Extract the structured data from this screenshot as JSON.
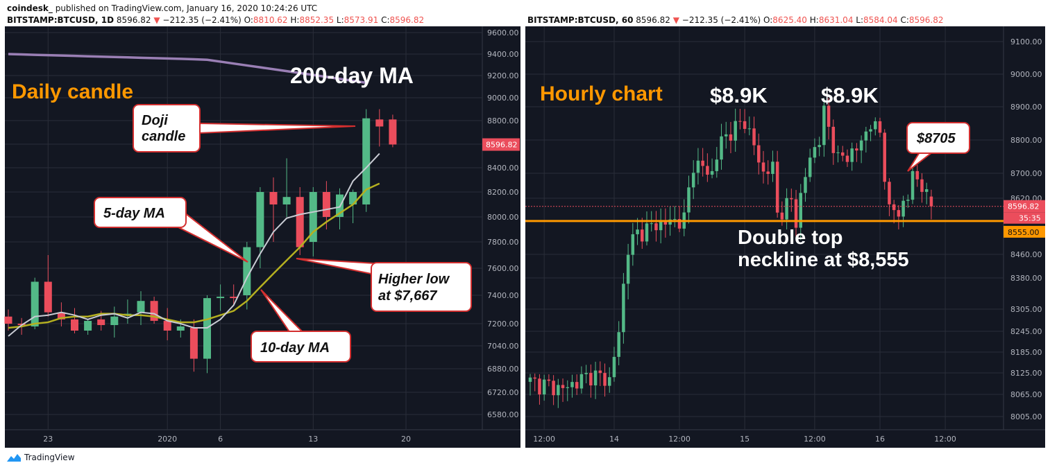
{
  "header": {
    "author": "coindesk_",
    "published": "published on TradingView.com, January 16, 2020 10:24:26 UTC"
  },
  "footer": {
    "brand": "TradingView"
  },
  "colors": {
    "bg": "#131722",
    "grid": "#2a2e39",
    "up": "#53b987",
    "down": "#eb4d5c",
    "ma5": "#c9ccd4",
    "ma10": "#b5b020",
    "ma200": "#9a7fb5",
    "neckline": "#ff9800",
    "orange_text": "#ff9800"
  },
  "chart_data": [
    {
      "type": "candlestick",
      "symbol_line": "BITSTAMP:BTCUSD, 1D",
      "last": "8596.82",
      "change": "−212.35 (−2.41%)",
      "ohlc": {
        "o_label": "O:",
        "o": "8810.62",
        "h_label": "H:",
        "h": "8852.35",
        "l_label": "L:",
        "l": "8573.91",
        "c_label": "C:",
        "c": "8596.82"
      },
      "price_label": "8596.82",
      "y_ticks": [
        "9600.00",
        "9400.00",
        "9200.00",
        "9000.00",
        "8800.00",
        "8600.00",
        "8400.00",
        "8200.00",
        "8000.00",
        "7800.00",
        "7600.00",
        "7400.00",
        "7200.00",
        "7040.00",
        "6880.00",
        "6720.00",
        "6580.00"
      ],
      "y_tick_values": [
        9600,
        9400,
        9200,
        9000,
        8800,
        8600,
        8400,
        8200,
        8000,
        7800,
        7600,
        7400,
        7200,
        7040,
        6880,
        6720,
        6580
      ],
      "x_ticks": [
        "23",
        "2020",
        "6",
        "13",
        "20"
      ],
      "x_tick_index": [
        3,
        12,
        16,
        23,
        30
      ],
      "candles": [
        [
          7250,
          7300,
          7150,
          7200
        ],
        [
          7200,
          7240,
          7120,
          7190
        ],
        [
          7180,
          7530,
          7160,
          7500
        ],
        [
          7500,
          7700,
          7250,
          7280
        ],
        [
          7280,
          7350,
          7180,
          7230
        ],
        [
          7230,
          7310,
          7130,
          7150
        ],
        [
          7150,
          7230,
          7120,
          7220
        ],
        [
          7230,
          7290,
          7150,
          7190
        ],
        [
          7190,
          7320,
          7100,
          7250
        ],
        [
          7260,
          7370,
          7200,
          7270
        ],
        [
          7280,
          7430,
          7190,
          7360
        ],
        [
          7360,
          7390,
          7200,
          7220
        ],
        [
          7220,
          7310,
          7080,
          7150
        ],
        [
          7150,
          7230,
          7100,
          7180
        ],
        [
          7170,
          7230,
          6860,
          6950
        ],
        [
          6950,
          7400,
          6850,
          7380
        ],
        [
          7380,
          7480,
          7290,
          7390
        ],
        [
          7390,
          7480,
          7330,
          7380
        ],
        [
          7400,
          7800,
          7300,
          7760
        ],
        [
          7760,
          8240,
          7600,
          8200
        ],
        [
          8200,
          8320,
          7800,
          8100
        ],
        [
          8100,
          8480,
          8000,
          8160
        ],
        [
          8160,
          8240,
          7700,
          7760
        ],
        [
          7800,
          8240,
          7690,
          8200
        ],
        [
          8200,
          8290,
          7900,
          8000
        ],
        [
          8000,
          8230,
          7900,
          8180
        ],
        [
          8100,
          8220,
          7950,
          8200
        ],
        [
          8100,
          8900,
          8040,
          8820
        ],
        [
          8810,
          8900,
          8580,
          8750
        ],
        [
          8810,
          8852,
          8574,
          8597
        ]
      ],
      "ma5": [
        7110,
        7190,
        7250,
        7260,
        7280,
        7260,
        7230,
        7260,
        7270,
        7240,
        7280,
        7270,
        7220,
        7200,
        7170,
        7170,
        7230,
        7330,
        7530,
        7710,
        7880,
        7990,
        8020,
        8040,
        8060,
        8080,
        8290,
        8400,
        8520
      ],
      "ma10": [
        7170,
        7180,
        7200,
        7210,
        7240,
        7250,
        7250,
        7270,
        7270,
        7260,
        7260,
        7250,
        7230,
        7210,
        7210,
        7230,
        7260,
        7290,
        7360,
        7460,
        7560,
        7660,
        7760,
        7880,
        7960,
        8030,
        8100,
        8220,
        8270
      ],
      "ma200_start": 9400,
      "ma200_end": 9135,
      "annotations": {
        "daily_candle": "Daily candle",
        "ma200": "200-day MA",
        "doji": [
          "Doji",
          "candle"
        ],
        "ma5": "5-day MA",
        "higher_low": [
          "Higher low",
          "at $7,667"
        ],
        "ma10": "10-day MA"
      }
    },
    {
      "type": "candlestick",
      "symbol_line": "BITSTAMP:BTCUSD, 60",
      "last": "8596.82",
      "change": "−212.35 (−2.41%)",
      "ohlc": {
        "o_label": "O:",
        "o": "8625.40",
        "h_label": "H:",
        "h": "8631.04",
        "l_label": "L:",
        "l": "8584.04",
        "c_label": "C:",
        "c": "8596.82"
      },
      "price_label": "8596.82",
      "timer_label": "35:35",
      "neckline_label": "8555.00",
      "neckline_value": 8555,
      "y_ticks": [
        "9100.00",
        "9000.00",
        "8900.00",
        "8800.00",
        "8700.00",
        "8620.00",
        "8460.00",
        "8380.00",
        "8305.00",
        "8245.00",
        "8185.00",
        "8125.00",
        "8065.00",
        "8005.00"
      ],
      "y_tick_values": [
        9100,
        9000,
        8900,
        8800,
        8700,
        8620,
        8460,
        8380,
        8305,
        8245,
        8185,
        8125,
        8065,
        8005
      ],
      "x_ticks": [
        "12:00",
        "14",
        "12:00",
        "15",
        "12:00",
        "16",
        "12:00"
      ],
      "x_tick_index": [
        3,
        18,
        32,
        46,
        61,
        75,
        89
      ],
      "annotations": {
        "hourly_chart": "Hourly chart",
        "top1": "$8.9K",
        "top2": "$8.9K",
        "p8705": "$8705",
        "double_top": [
          "Double top",
          "neckline at $8,555"
        ]
      }
    }
  ]
}
